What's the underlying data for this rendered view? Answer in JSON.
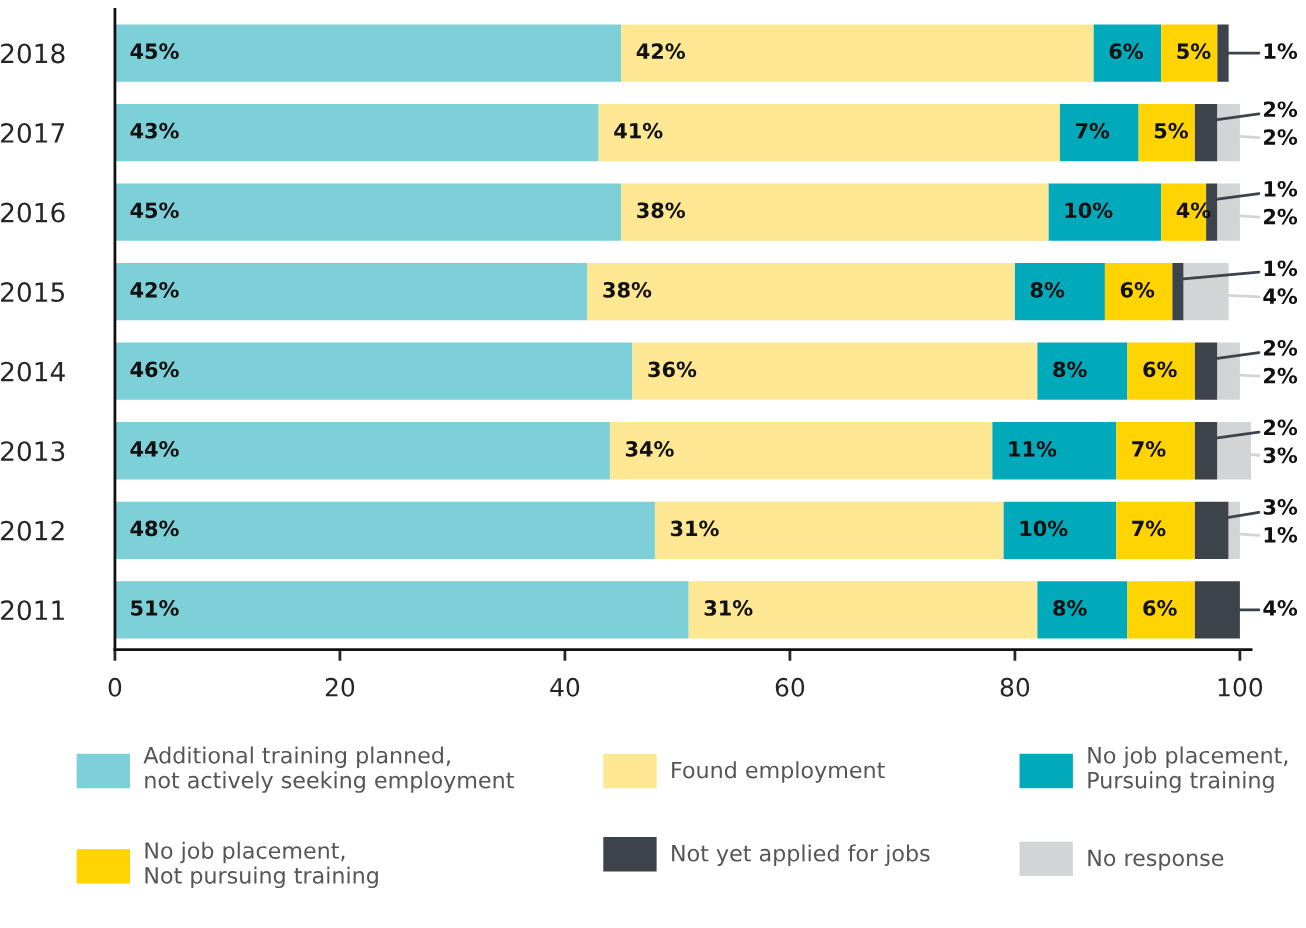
{
  "chart_data": {
    "type": "bar",
    "orientation": "horizontal",
    "stacked": true,
    "grid": false,
    "legend": "bottom",
    "categories": [
      "2018",
      "2017",
      "2016",
      "2015",
      "2014",
      "2013",
      "2012",
      "2011"
    ],
    "xlim": [
      0,
      101
    ],
    "xticks": [
      0,
      20,
      40,
      60,
      80,
      100
    ],
    "series": [
      {
        "name": "Additional training planned,\nnot actively seeking employment",
        "color": "#7dcfd8",
        "values": [
          45,
          43,
          45,
          42,
          46,
          44,
          48,
          51
        ],
        "value_labels": [
          "45%",
          "43%",
          "45%",
          "42%",
          "46%",
          "44%",
          "48%",
          "51%"
        ]
      },
      {
        "name": "Found employment",
        "color": "#fde792",
        "values": [
          42,
          41,
          38,
          38,
          36,
          34,
          31,
          31
        ],
        "value_labels": [
          "42%",
          "41%",
          "38%",
          "38%",
          "36%",
          "34%",
          "31%",
          "31%"
        ]
      },
      {
        "name": "No job placement,\nPursuing training",
        "color": "#00aabb",
        "values": [
          6,
          7,
          10,
          8,
          8,
          11,
          10,
          8
        ],
        "value_labels": [
          "6%",
          "7%",
          "10%",
          "8%",
          "8%",
          "11%",
          "10%",
          "8%"
        ]
      },
      {
        "name": "No job placement,\nNot pursuing training",
        "color": "#ffd400",
        "values": [
          5,
          5,
          4,
          6,
          6,
          7,
          7,
          6
        ],
        "value_labels": [
          "5%",
          "5%",
          "4%",
          "6%",
          "6%",
          "7%",
          "7%",
          "6%"
        ]
      },
      {
        "name": "Not yet applied for jobs",
        "color": "#3d434b",
        "values": [
          1,
          2,
          1,
          1,
          2,
          2,
          3,
          4
        ],
        "value_labels": [
          "1%",
          "2%",
          "1%",
          "1%",
          "2%",
          "2%",
          "3%",
          "4%"
        ]
      },
      {
        "name": "No response",
        "color": "#d3d4d6",
        "values": [
          null,
          2,
          2,
          4,
          2,
          3,
          1,
          null
        ],
        "value_labels": [
          null,
          "2%",
          "2%",
          "4%",
          "2%",
          "3%",
          "1%",
          null
        ]
      }
    ]
  }
}
